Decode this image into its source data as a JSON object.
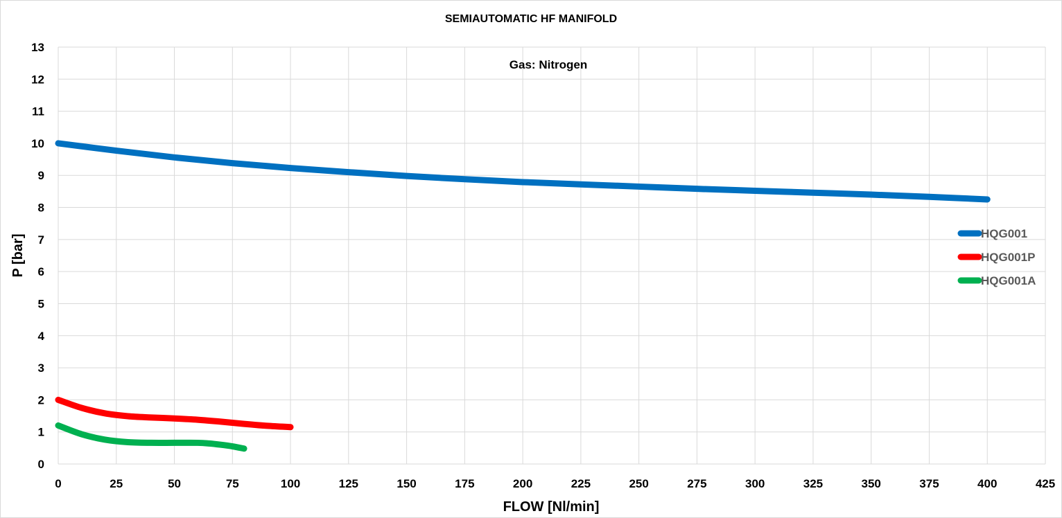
{
  "chart_data": {
    "type": "line",
    "title": "SEMIAUTOMATIC HF MANIFOLD",
    "annotation": "Gas: Nitrogen",
    "xlabel": "FLOW [Nl/min]",
    "ylabel": "P [bar]",
    "xlim": [
      0,
      425
    ],
    "ylim": [
      0,
      13
    ],
    "x_ticks": [
      0,
      25,
      50,
      75,
      100,
      125,
      150,
      175,
      200,
      225,
      250,
      275,
      300,
      325,
      350,
      375,
      400,
      425
    ],
    "y_ticks": [
      0,
      1,
      2,
      3,
      4,
      5,
      6,
      7,
      8,
      9,
      10,
      11,
      12,
      13
    ],
    "grid": true,
    "legend_position": "right",
    "series": [
      {
        "name": "HQG001",
        "color": "#0070c0",
        "x": [
          0,
          25,
          50,
          75,
          100,
          125,
          150,
          175,
          200,
          225,
          250,
          275,
          300,
          325,
          350,
          375,
          400
        ],
        "y": [
          10.0,
          9.77,
          9.56,
          9.38,
          9.23,
          9.1,
          8.98,
          8.88,
          8.79,
          8.72,
          8.65,
          8.58,
          8.52,
          8.46,
          8.4,
          8.33,
          8.25
        ]
      },
      {
        "name": "HQG001P",
        "color": "#ff0000",
        "x": [
          0,
          10,
          20,
          30,
          40,
          50,
          60,
          70,
          80,
          90,
          100
        ],
        "y": [
          2.0,
          1.75,
          1.58,
          1.49,
          1.45,
          1.42,
          1.38,
          1.32,
          1.25,
          1.19,
          1.15
        ]
      },
      {
        "name": "HQG001A",
        "color": "#00b050",
        "x": [
          0,
          10,
          20,
          30,
          40,
          50,
          60,
          65,
          70,
          75,
          80
        ],
        "y": [
          1.2,
          0.93,
          0.76,
          0.68,
          0.66,
          0.66,
          0.66,
          0.64,
          0.6,
          0.55,
          0.48
        ]
      }
    ]
  }
}
